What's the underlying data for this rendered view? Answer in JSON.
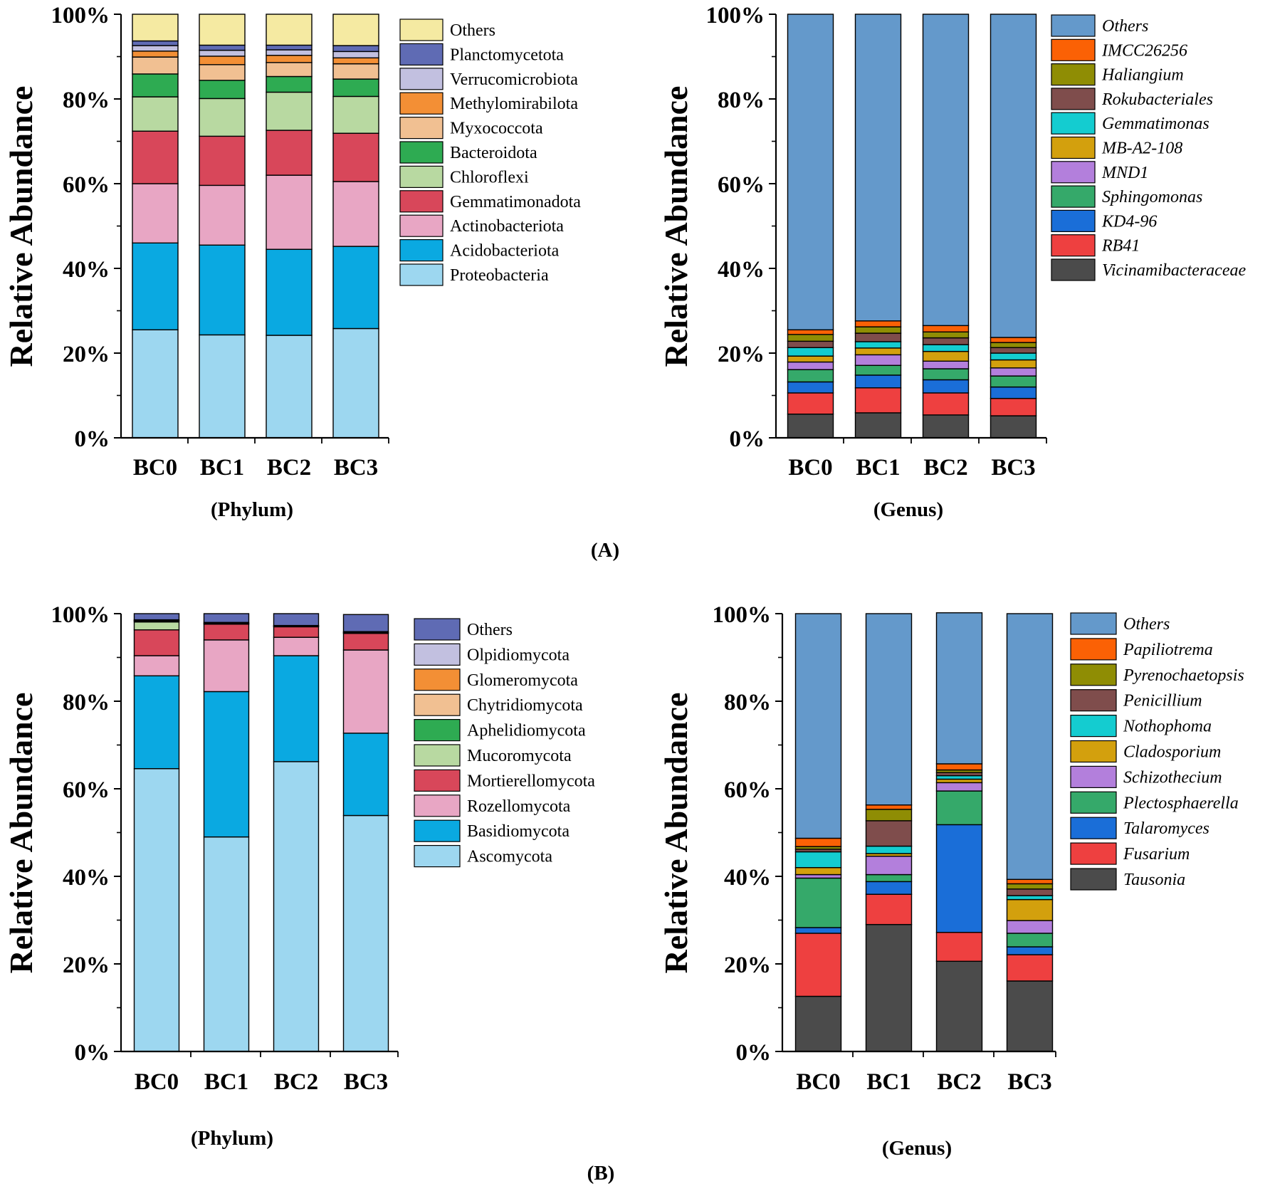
{
  "panel_labels": [
    "(A)",
    "(B)"
  ],
  "chart_data": [
    {
      "type": "bar",
      "stacked": true,
      "title": "",
      "xlabel": "(Phylum)",
      "ylabel": "Relative Abundance",
      "ylim": [
        0,
        100
      ],
      "yticks": [
        "0%",
        "20%",
        "40%",
        "60%",
        "80%",
        "100%"
      ],
      "categories": [
        "BC0",
        "BC1",
        "BC2",
        "BC3"
      ],
      "legend_italic": false,
      "series": [
        {
          "name": "Proteobacteria",
          "color": "#9dd7f0",
          "values": [
            25.5,
            24.3,
            24.2,
            25.8
          ]
        },
        {
          "name": "Acidobacteriota",
          "color": "#0aa9e1",
          "values": [
            20.5,
            21.2,
            20.3,
            19.4
          ]
        },
        {
          "name": "Actinobacteriota",
          "color": "#e8a6c4",
          "values": [
            14.0,
            14.1,
            17.5,
            15.3
          ]
        },
        {
          "name": "Gemmatimonadota",
          "color": "#d8475a",
          "values": [
            12.4,
            11.6,
            10.6,
            11.4
          ]
        },
        {
          "name": "Chloroflexi",
          "color": "#b8d9a1",
          "values": [
            8.1,
            8.9,
            9.0,
            8.7
          ]
        },
        {
          "name": "Bacteroidota",
          "color": "#2eab52",
          "values": [
            5.4,
            4.3,
            3.7,
            4.1
          ]
        },
        {
          "name": "Myxococcota",
          "color": "#f1c092",
          "values": [
            4.0,
            3.7,
            3.3,
            3.6
          ]
        },
        {
          "name": "Methylomirabilota",
          "color": "#f38f35",
          "values": [
            1.4,
            2.0,
            1.7,
            1.4
          ]
        },
        {
          "name": "Verrucomicrobiota",
          "color": "#c2c0e0",
          "values": [
            1.3,
            1.4,
            1.3,
            1.5
          ]
        },
        {
          "name": "Planctomycetota",
          "color": "#5f6bb4",
          "values": [
            1.1,
            1.2,
            1.1,
            1.4
          ]
        },
        {
          "name": "Others",
          "color": "#f5eaa2",
          "values": [
            6.3,
            7.3,
            7.3,
            7.4
          ]
        }
      ]
    },
    {
      "type": "bar",
      "stacked": true,
      "title": "",
      "xlabel": "(Genus)",
      "ylabel": "Relative Abundance",
      "ylim": [
        0,
        100
      ],
      "yticks": [
        "0%",
        "20%",
        "40%",
        "60%",
        "80%",
        "100%"
      ],
      "categories": [
        "BC0",
        "BC1",
        "BC2",
        "BC3"
      ],
      "legend_italic": true,
      "series": [
        {
          "name": "Vicinamibacteraceae",
          "color": "#4b4b4b",
          "values": [
            5.6,
            5.9,
            5.4,
            5.2
          ]
        },
        {
          "name": "RB41",
          "color": "#ee4040",
          "values": [
            5.0,
            5.9,
            5.2,
            4.1
          ]
        },
        {
          "name": "KD4-96",
          "color": "#1a6ed8",
          "values": [
            2.6,
            3.0,
            3.1,
            2.7
          ]
        },
        {
          "name": "Sphingomonas",
          "color": "#35a96a",
          "values": [
            2.9,
            2.3,
            2.6,
            2.6
          ]
        },
        {
          "name": "MND1",
          "color": "#b37fdc",
          "values": [
            1.8,
            2.5,
            1.8,
            1.9
          ]
        },
        {
          "name": "MB-A2-108",
          "color": "#d3a00d",
          "values": [
            1.4,
            1.6,
            2.3,
            1.9
          ]
        },
        {
          "name": "Gemmatimonas",
          "color": "#14ccd0",
          "values": [
            2.0,
            1.5,
            1.6,
            1.6
          ]
        },
        {
          "name": "Rokubacteriales",
          "color": "#7f4d4c",
          "values": [
            1.5,
            2.0,
            1.6,
            1.3
          ]
        },
        {
          "name": "Haliangium",
          "color": "#8f8d04",
          "values": [
            1.6,
            1.5,
            1.4,
            1.2
          ]
        },
        {
          "name": "IMCC26256",
          "color": "#fb6105",
          "values": [
            1.1,
            1.4,
            1.5,
            1.2
          ]
        },
        {
          "name": "Others",
          "color": "#6499cb",
          "values": [
            74.5,
            72.4,
            73.5,
            76.3
          ]
        }
      ]
    },
    {
      "type": "bar",
      "stacked": true,
      "title": "",
      "xlabel": "(Phylum)",
      "ylabel": "Relative Abundance",
      "ylim": [
        0,
        100
      ],
      "yticks": [
        "0%",
        "20%",
        "40%",
        "60%",
        "80%",
        "100%"
      ],
      "categories": [
        "BC0",
        "BC1",
        "BC2",
        "BC3"
      ],
      "legend_italic": false,
      "series": [
        {
          "name": "Ascomycota",
          "color": "#9dd7f0",
          "values": [
            64.6,
            49.0,
            66.2,
            53.9
          ]
        },
        {
          "name": "Basidiomycota",
          "color": "#0aa9e1",
          "values": [
            21.2,
            33.2,
            24.2,
            18.8
          ]
        },
        {
          "name": "Rozellomycota",
          "color": "#e8a6c4",
          "values": [
            4.6,
            11.8,
            4.2,
            19.0
          ]
        },
        {
          "name": "Mortierellomycota",
          "color": "#d8475a",
          "values": [
            5.9,
            3.6,
            2.4,
            3.8
          ]
        },
        {
          "name": "Mucoromycota",
          "color": "#b8d9a1",
          "values": [
            1.8,
            0.0,
            0.0,
            0.0
          ]
        },
        {
          "name": "Aphelidiomycota",
          "color": "#2eab52",
          "values": [
            0.2,
            0.0,
            0.0,
            0.0
          ]
        },
        {
          "name": "Chytridiomycota",
          "color": "#f1c092",
          "values": [
            0.1,
            0.1,
            0.1,
            0.1
          ]
        },
        {
          "name": "Glomeromycota",
          "color": "#f38f35",
          "values": [
            0.1,
            0.1,
            0.1,
            0.1
          ]
        },
        {
          "name": "Olpidiomycota",
          "color": "#c2c0e0",
          "values": [
            0.1,
            0.2,
            0.1,
            0.2
          ]
        },
        {
          "name": "Others",
          "color": "#5f6bb4",
          "values": [
            1.4,
            2.0,
            2.7,
            3.9
          ]
        }
      ]
    },
    {
      "type": "bar",
      "stacked": true,
      "title": "",
      "xlabel": "(Genus)",
      "ylabel": "Relative Abundance",
      "ylim": [
        0,
        100
      ],
      "yticks": [
        "0%",
        "20%",
        "40%",
        "60%",
        "80%",
        "100%"
      ],
      "categories": [
        "BC0",
        "BC1",
        "BC2",
        "BC3"
      ],
      "legend_italic": true,
      "series": [
        {
          "name": "Tausonia",
          "color": "#4b4b4b",
          "values": [
            12.6,
            29.0,
            20.6,
            16.1
          ]
        },
        {
          "name": "Fusarium",
          "color": "#ee4040",
          "values": [
            14.4,
            6.9,
            6.6,
            6.0
          ]
        },
        {
          "name": "Talaromyces",
          "color": "#1a6ed8",
          "values": [
            1.3,
            2.9,
            24.6,
            1.8
          ]
        },
        {
          "name": "Plectosphaerella",
          "color": "#35a96a",
          "values": [
            11.3,
            1.6,
            7.7,
            3.1
          ]
        },
        {
          "name": "Schizothecium",
          "color": "#b37fdc",
          "values": [
            0.8,
            4.2,
            1.9,
            2.9
          ]
        },
        {
          "name": "Cladosporium",
          "color": "#d3a00d",
          "values": [
            1.6,
            0.6,
            0.8,
            4.8
          ]
        },
        {
          "name": "Nothophoma",
          "color": "#14ccd0",
          "values": [
            3.6,
            1.7,
            0.8,
            0.9
          ]
        },
        {
          "name": "Penicillium",
          "color": "#7f4d4c",
          "values": [
            0.6,
            5.8,
            0.7,
            1.5
          ]
        },
        {
          "name": "Pyrenochaetopsis",
          "color": "#8f8d04",
          "values": [
            0.6,
            2.6,
            0.6,
            1.2
          ]
        },
        {
          "name": "Papiliotrema",
          "color": "#fb6105",
          "values": [
            1.9,
            1.0,
            1.4,
            1.0
          ]
        },
        {
          "name": "Others",
          "color": "#6499cb",
          "values": [
            51.3,
            43.7,
            34.5,
            60.7
          ]
        }
      ]
    }
  ]
}
